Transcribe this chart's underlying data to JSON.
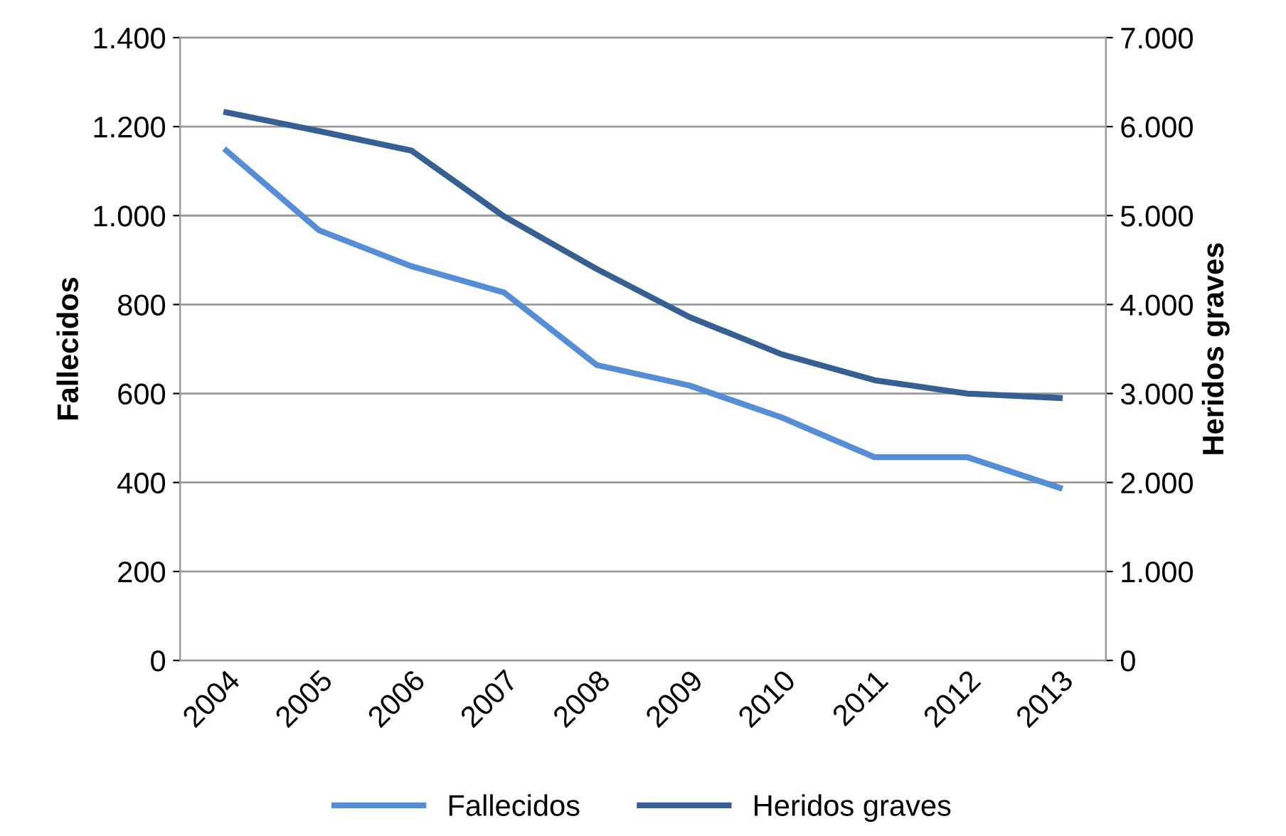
{
  "chart_data": {
    "type": "line",
    "ylabel": "Fallecidos",
    "y2label": "Heridos graves",
    "categories": [
      "2004",
      "2005",
      "2006",
      "2007",
      "2008",
      "2009",
      "2010",
      "2011",
      "2012",
      "2013"
    ],
    "series": [
      {
        "name": "Fallecidos",
        "color": "#558ed5",
        "values": [
          1146,
          967,
          886,
          827,
          664,
          618,
          546,
          457,
          457,
          388
        ]
      },
      {
        "name": "Heridos graves",
        "color": "#376092",
        "axis": "y2",
        "values": [
          6160,
          5950,
          5730,
          4990,
          4400,
          3860,
          3440,
          3150,
          3000,
          2950
        ]
      }
    ],
    "ylim": [
      0,
      1400
    ],
    "yticks": [
      {
        "value": 0,
        "label": "0"
      },
      {
        "value": 200,
        "label": "200"
      },
      {
        "value": 400,
        "label": "400"
      },
      {
        "value": 600,
        "label": "600"
      },
      {
        "value": 800,
        "label": "800"
      },
      {
        "value": 1000,
        "label": "1.000"
      },
      {
        "value": 1200,
        "label": "1.200"
      },
      {
        "value": 1400,
        "label": "1.400"
      }
    ],
    "y2lim": [
      0,
      7000
    ],
    "y2ticks": [
      {
        "value": 0,
        "label": "0"
      },
      {
        "value": 1000,
        "label": "1.000"
      },
      {
        "value": 2000,
        "label": "2.000"
      },
      {
        "value": 3000,
        "label": "3.000"
      },
      {
        "value": 4000,
        "label": "4.000"
      },
      {
        "value": 5000,
        "label": "5.000"
      },
      {
        "value": 6000,
        "label": "6.000"
      },
      {
        "value": 7000,
        "label": "7.000"
      }
    ],
    "grid": "y",
    "legend": "bottom",
    "marker": "none",
    "line_style": "solid"
  }
}
